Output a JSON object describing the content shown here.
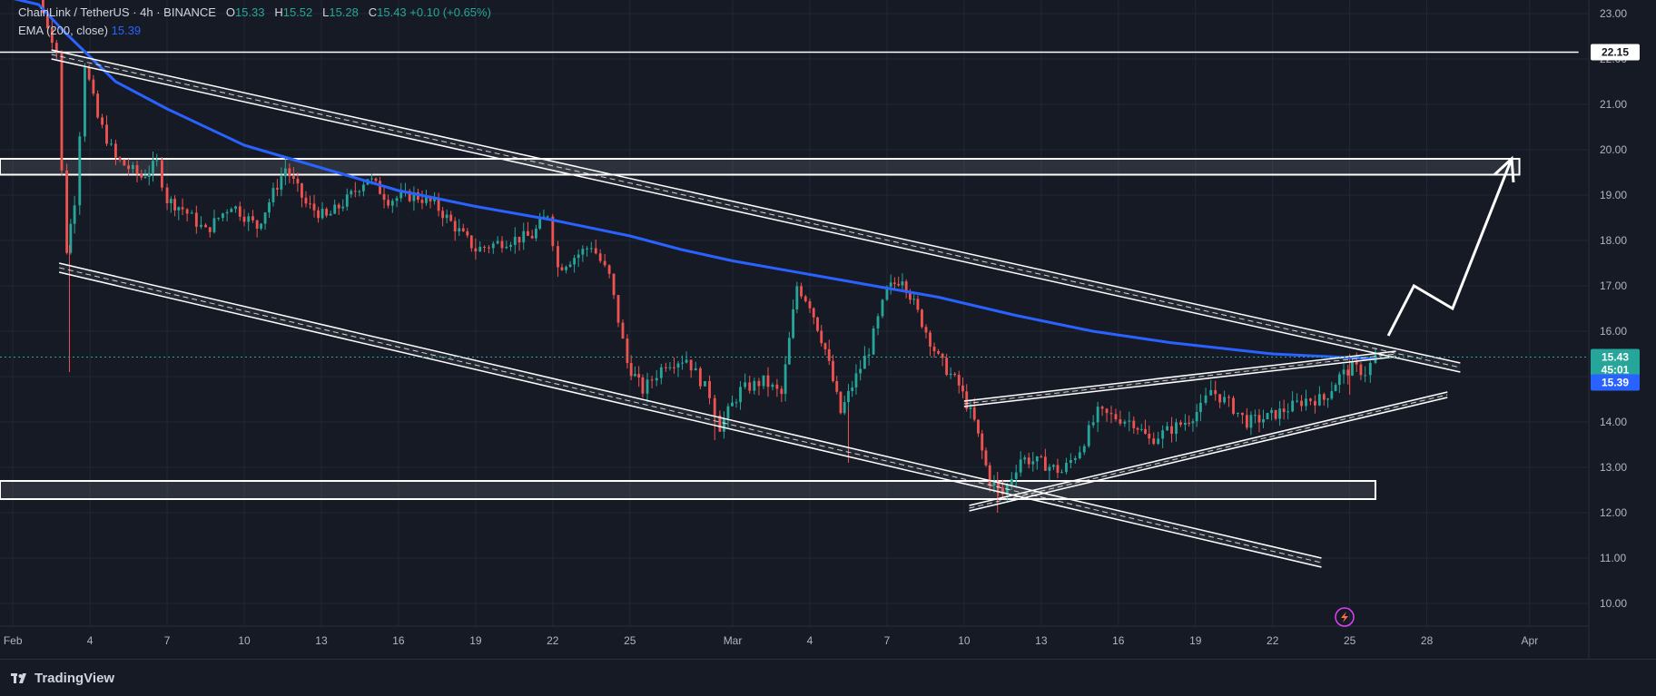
{
  "legend": {
    "symbol": "ChainLink / TetherUS · 4h · BINANCE",
    "o_label": "O",
    "o_value": "15.33",
    "h_label": "H",
    "h_value": "15.52",
    "l_label": "L",
    "l_value": "15.28",
    "c_label": "C",
    "c_value": "15.43",
    "change": "+0.10 (+0.65%)",
    "ema_label": "EMA (200, close)",
    "ema_value": "15.39"
  },
  "footer": {
    "brand": "TradingView"
  },
  "colors": {
    "background": "#161a25",
    "up": "#26a69a",
    "down": "#ef5350",
    "ema": "#2962ff",
    "drawing": "#ffffff",
    "grid": "#232734",
    "axis_text": "#b2b5be"
  },
  "chart_data": {
    "type": "candlestick",
    "x_ticks": [
      {
        "d": 1,
        "label": "Feb"
      },
      {
        "d": 4,
        "label": "4"
      },
      {
        "d": 7,
        "label": "7"
      },
      {
        "d": 10,
        "label": "10"
      },
      {
        "d": 13,
        "label": "13"
      },
      {
        "d": 16,
        "label": "16"
      },
      {
        "d": 19,
        "label": "19"
      },
      {
        "d": 22,
        "label": "22"
      },
      {
        "d": 25,
        "label": "25"
      },
      {
        "d": 29,
        "label": "Mar"
      },
      {
        "d": 32,
        "label": "4"
      },
      {
        "d": 35,
        "label": "7"
      },
      {
        "d": 38,
        "label": "10"
      },
      {
        "d": 41,
        "label": "13"
      },
      {
        "d": 44,
        "label": "16"
      },
      {
        "d": 47,
        "label": "19"
      },
      {
        "d": 50,
        "label": "22"
      },
      {
        "d": 53,
        "label": "25"
      },
      {
        "d": 56,
        "label": "28"
      },
      {
        "d": 60,
        "label": "Apr"
      }
    ],
    "y_ticks": [
      "23.00",
      "22.00",
      "21.00",
      "20.00",
      "19.00",
      "18.00",
      "17.00",
      "16.00",
      "15.00",
      "14.00",
      "13.00",
      "12.00",
      "11.00",
      "10.00"
    ],
    "y_range": [
      9.5,
      23.3
    ],
    "x_range": [
      0.5,
      62.3
    ],
    "price_path": [
      [
        2.0,
        23.3
      ],
      [
        2.7,
        22.2
      ],
      [
        2.9,
        19.5
      ],
      [
        3.1,
        17.8
      ],
      [
        3.4,
        18.9
      ],
      [
        3.8,
        21.9
      ],
      [
        4.3,
        20.7
      ],
      [
        5.0,
        19.8
      ],
      [
        6.0,
        19.4
      ],
      [
        6.6,
        19.7
      ],
      [
        7.0,
        18.9
      ],
      [
        7.6,
        18.7
      ],
      [
        8.5,
        18.2
      ],
      [
        9.5,
        18.8
      ],
      [
        10.5,
        18.3
      ],
      [
        11.6,
        19.6
      ],
      [
        12.4,
        18.8
      ],
      [
        13.2,
        18.5
      ],
      [
        14.0,
        18.9
      ],
      [
        14.8,
        19.4
      ],
      [
        15.6,
        18.9
      ],
      [
        16.6,
        19.0
      ],
      [
        17.4,
        18.8
      ],
      [
        18.2,
        18.3
      ],
      [
        19.0,
        17.8
      ],
      [
        20.2,
        18.0
      ],
      [
        21.2,
        18.1
      ],
      [
        21.8,
        18.6
      ],
      [
        22.2,
        17.4
      ],
      [
        23.0,
        17.7
      ],
      [
        23.5,
        17.9
      ],
      [
        24.2,
        17.2
      ],
      [
        24.9,
        15.3
      ],
      [
        25.5,
        14.7
      ],
      [
        26.4,
        15.3
      ],
      [
        27.2,
        15.4
      ],
      [
        28.1,
        14.6
      ],
      [
        28.5,
        13.9
      ],
      [
        29.3,
        14.7
      ],
      [
        30.2,
        14.9
      ],
      [
        30.9,
        14.6
      ],
      [
        31.5,
        17.0
      ],
      [
        32.0,
        16.6
      ],
      [
        32.6,
        15.6
      ],
      [
        33.2,
        14.2
      ],
      [
        33.8,
        15.0
      ],
      [
        34.3,
        15.6
      ],
      [
        35.0,
        16.9
      ],
      [
        35.6,
        17.2
      ],
      [
        36.2,
        16.4
      ],
      [
        37.0,
        15.4
      ],
      [
        37.8,
        14.8
      ],
      [
        38.4,
        14.0
      ],
      [
        39.0,
        12.7
      ],
      [
        39.5,
        12.4
      ],
      [
        40.2,
        13.2
      ],
      [
        41.0,
        13.1
      ],
      [
        41.8,
        12.9
      ],
      [
        42.5,
        13.4
      ],
      [
        43.2,
        14.2
      ],
      [
        43.9,
        14.1
      ],
      [
        44.6,
        14.0
      ],
      [
        45.2,
        13.6
      ],
      [
        45.9,
        13.8
      ],
      [
        46.6,
        14.0
      ],
      [
        47.2,
        14.3
      ],
      [
        47.6,
        14.7
      ],
      [
        48.3,
        14.4
      ],
      [
        49.0,
        14.0
      ],
      [
        49.8,
        14.1
      ],
      [
        50.6,
        14.3
      ],
      [
        51.3,
        14.5
      ],
      [
        52.0,
        14.5
      ],
      [
        52.6,
        15.0
      ],
      [
        53.1,
        15.2
      ],
      [
        53.6,
        15.1
      ],
      [
        54.0,
        15.43
      ]
    ],
    "wicks": [
      [
        3.2,
        15.1,
        17.9
      ],
      [
        28.3,
        13.6,
        14.6
      ],
      [
        33.5,
        13.1,
        14.3
      ],
      [
        39.3,
        12.0,
        12.9
      ],
      [
        53.0,
        14.6,
        15.5
      ]
    ],
    "ema_200": [
      [
        0.5,
        23.4
      ],
      [
        2.0,
        23.2
      ],
      [
        3.0,
        22.6
      ],
      [
        5.0,
        21.5
      ],
      [
        7.0,
        20.9
      ],
      [
        10.0,
        20.1
      ],
      [
        13.0,
        19.6
      ],
      [
        16.0,
        19.1
      ],
      [
        19.0,
        18.75
      ],
      [
        22.0,
        18.45
      ],
      [
        25.0,
        18.1
      ],
      [
        27.0,
        17.8
      ],
      [
        29.0,
        17.55
      ],
      [
        32.0,
        17.25
      ],
      [
        35.0,
        16.95
      ],
      [
        37.0,
        16.75
      ],
      [
        40.0,
        16.35
      ],
      [
        43.0,
        16.0
      ],
      [
        46.0,
        15.75
      ],
      [
        50.0,
        15.5
      ],
      [
        54.0,
        15.39
      ]
    ],
    "last_price": 15.43,
    "drawings": {
      "channel_upper": [
        [
          2.5,
          22.1
        ],
        [
          57.3,
          15.2
        ]
      ],
      "channel_lower": [
        [
          2.8,
          17.4
        ],
        [
          51.9,
          10.9
        ]
      ],
      "wedge_upper": [
        [
          38.0,
          14.4
        ],
        [
          54.8,
          15.5
        ]
      ],
      "wedge_lower": [
        [
          38.2,
          12.1
        ],
        [
          56.8,
          14.6
        ]
      ],
      "resistance_zone": [
        [
          0.5,
          19.8
        ],
        [
          59.6,
          19.45
        ]
      ],
      "support_zone": [
        [
          0.5,
          12.7
        ],
        [
          54.0,
          12.3
        ]
      ],
      "level_line": [
        [
          0.5,
          22.15
        ],
        [
          61.9,
          22.15
        ]
      ],
      "projection_arrow": [
        [
          54.5,
          15.9
        ],
        [
          55.5,
          17.0
        ],
        [
          57.0,
          16.5
        ],
        [
          59.3,
          19.8
        ]
      ]
    },
    "price_tags": [
      {
        "text": "22.15",
        "price": 22.15,
        "bg": "#ffffff",
        "fg": "#131722"
      },
      {
        "text": "15.43",
        "price": 15.43,
        "bg": "#26a69a",
        "fg": "#ffffff",
        "sub": "45:01"
      },
      {
        "text": "15.39",
        "price": 15.39,
        "bg": "#2962ff",
        "fg": "#ffffff"
      }
    ]
  }
}
